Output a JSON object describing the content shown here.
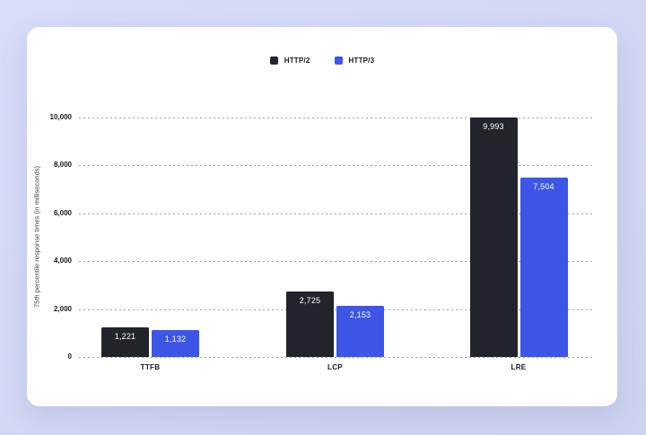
{
  "colors": {
    "background": "#cdd4f0",
    "card": "#ffffff",
    "http2": "#21252b",
    "http3": "#3d56e8",
    "gridline": "#9da0a8",
    "text": "#15181d"
  },
  "chart_data": {
    "type": "bar",
    "title": "",
    "xlabel": "",
    "ylabel": "75th percentile response times (in milliseconds)",
    "categories": [
      "TTFB",
      "LCP",
      "LRE"
    ],
    "series": [
      {
        "name": "HTTP/2",
        "color": "#21252b",
        "values": [
          1221,
          2725,
          9993
        ],
        "labels": [
          "1,221",
          "2,725",
          "9,993"
        ]
      },
      {
        "name": "HTTP/3",
        "color": "#3d56e8",
        "values": [
          1132,
          2153,
          7504
        ],
        "labels": [
          "1,132",
          "2,153",
          "7,504"
        ]
      }
    ],
    "ylim": [
      0,
      10000
    ],
    "yticks": [
      0,
      2000,
      4000,
      6000,
      8000,
      10000
    ],
    "ytick_labels": [
      "0",
      "2,000",
      "4,000",
      "6,000",
      "8,000",
      "10,000"
    ],
    "grid": "horizontal-dotted",
    "legend_position": "top-center",
    "value_label_position": "inside-top"
  }
}
